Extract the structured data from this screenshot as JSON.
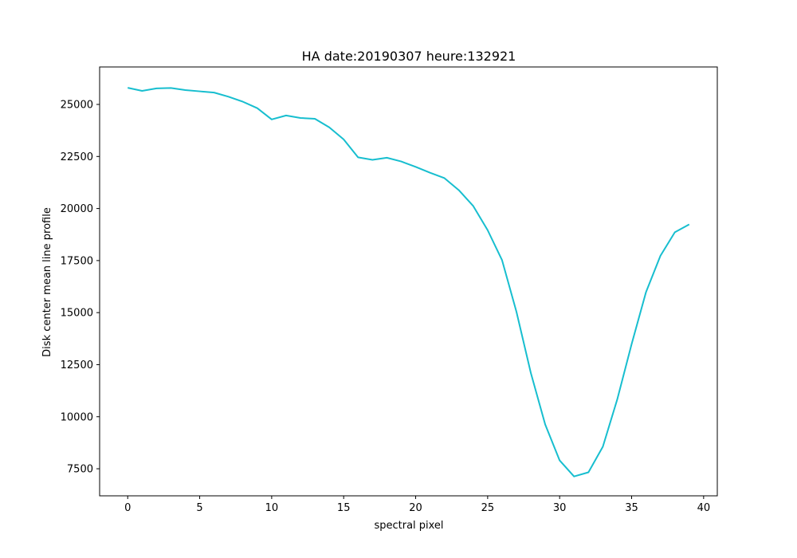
{
  "chart_data": {
    "type": "line",
    "title": "HA date:20190307 heure:132921",
    "xlabel": "spectral pixel",
    "ylabel": "Disk center mean line profile",
    "xlim": [
      -1.95,
      40.95
    ],
    "ylim": [
      6200,
      26800
    ],
    "xticks": [
      0,
      5,
      10,
      15,
      20,
      25,
      30,
      35,
      40
    ],
    "yticks": [
      7500,
      10000,
      12500,
      15000,
      17500,
      20000,
      22500,
      25000
    ],
    "grid": false,
    "legend": "none",
    "line_color": "#17becf",
    "series": [
      {
        "x": [
          0,
          1,
          2,
          3,
          4,
          5,
          6,
          7,
          8,
          9,
          10,
          11,
          12,
          13,
          14,
          15,
          16,
          17,
          18,
          19,
          20,
          21,
          22,
          23,
          24,
          25,
          26,
          27,
          28,
          29,
          30,
          31,
          32,
          33,
          34,
          35,
          36,
          37,
          38,
          39
        ],
        "values": [
          25800,
          25650,
          25770,
          25790,
          25690,
          25630,
          25570,
          25370,
          25130,
          24820,
          24280,
          24470,
          24350,
          24310,
          23900,
          23320,
          22460,
          22340,
          22440,
          22260,
          22000,
          21720,
          21460,
          20880,
          20120,
          18960,
          17520,
          15040,
          12100,
          9620,
          7900,
          7130,
          7330,
          8560,
          10830,
          13490,
          15990,
          17730,
          18860,
          19240
        ]
      }
    ]
  }
}
